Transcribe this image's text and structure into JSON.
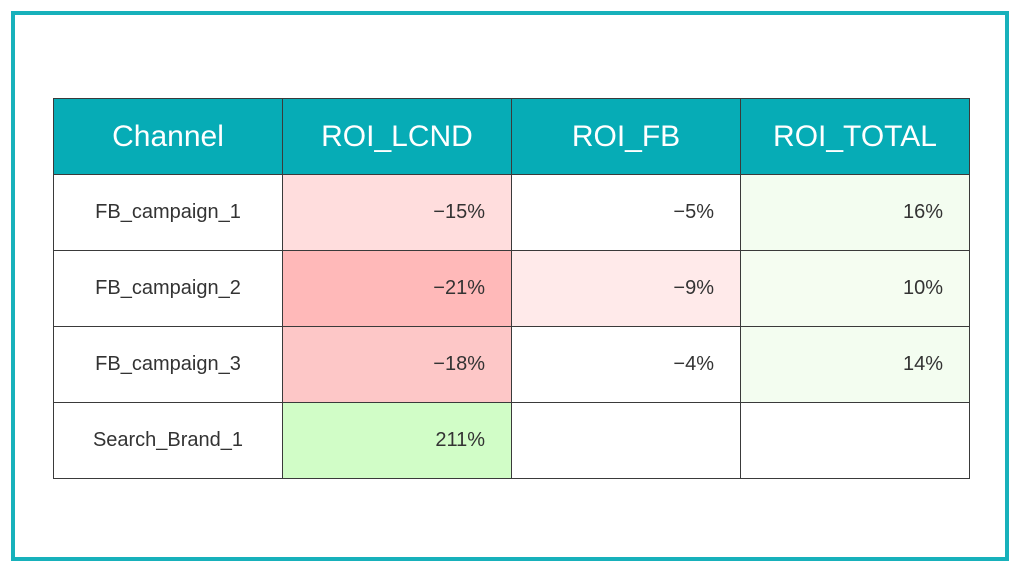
{
  "table": {
    "headers": [
      "Channel",
      "ROI_LCND",
      "ROI_FB",
      "ROI_TOTAL"
    ],
    "rows": [
      {
        "channel": "FB_campaign_1",
        "roi_lcnd": "−15%",
        "roi_fb": "−5%",
        "roi_total": "16%"
      },
      {
        "channel": "FB_campaign_2",
        "roi_lcnd": "−21%",
        "roi_fb": "−9%",
        "roi_total": "10%"
      },
      {
        "channel": "FB_campaign_3",
        "roi_lcnd": "−18%",
        "roi_fb": "−4%",
        "roi_total": "14%"
      },
      {
        "channel": "Search_Brand_1",
        "roi_lcnd": "211%",
        "roi_fb": "",
        "roi_total": ""
      }
    ]
  },
  "colors": {
    "frame_border": "#17b1bb",
    "header_background": "#06acb6",
    "header_text": "#ffffff",
    "cell_fills": [
      [
        "#ffffff",
        "#ffdddd",
        "#ffffff",
        "#f3fdf0"
      ],
      [
        "#ffffff",
        "#ffb9b9",
        "#ffeaea",
        "#f5fdf1"
      ],
      [
        "#ffffff",
        "#fdc7c7",
        "#ffffff",
        "#f3fdf0"
      ],
      [
        "#ffffff",
        "#d1fdc7",
        "#ffffff",
        "#ffffff"
      ]
    ]
  }
}
